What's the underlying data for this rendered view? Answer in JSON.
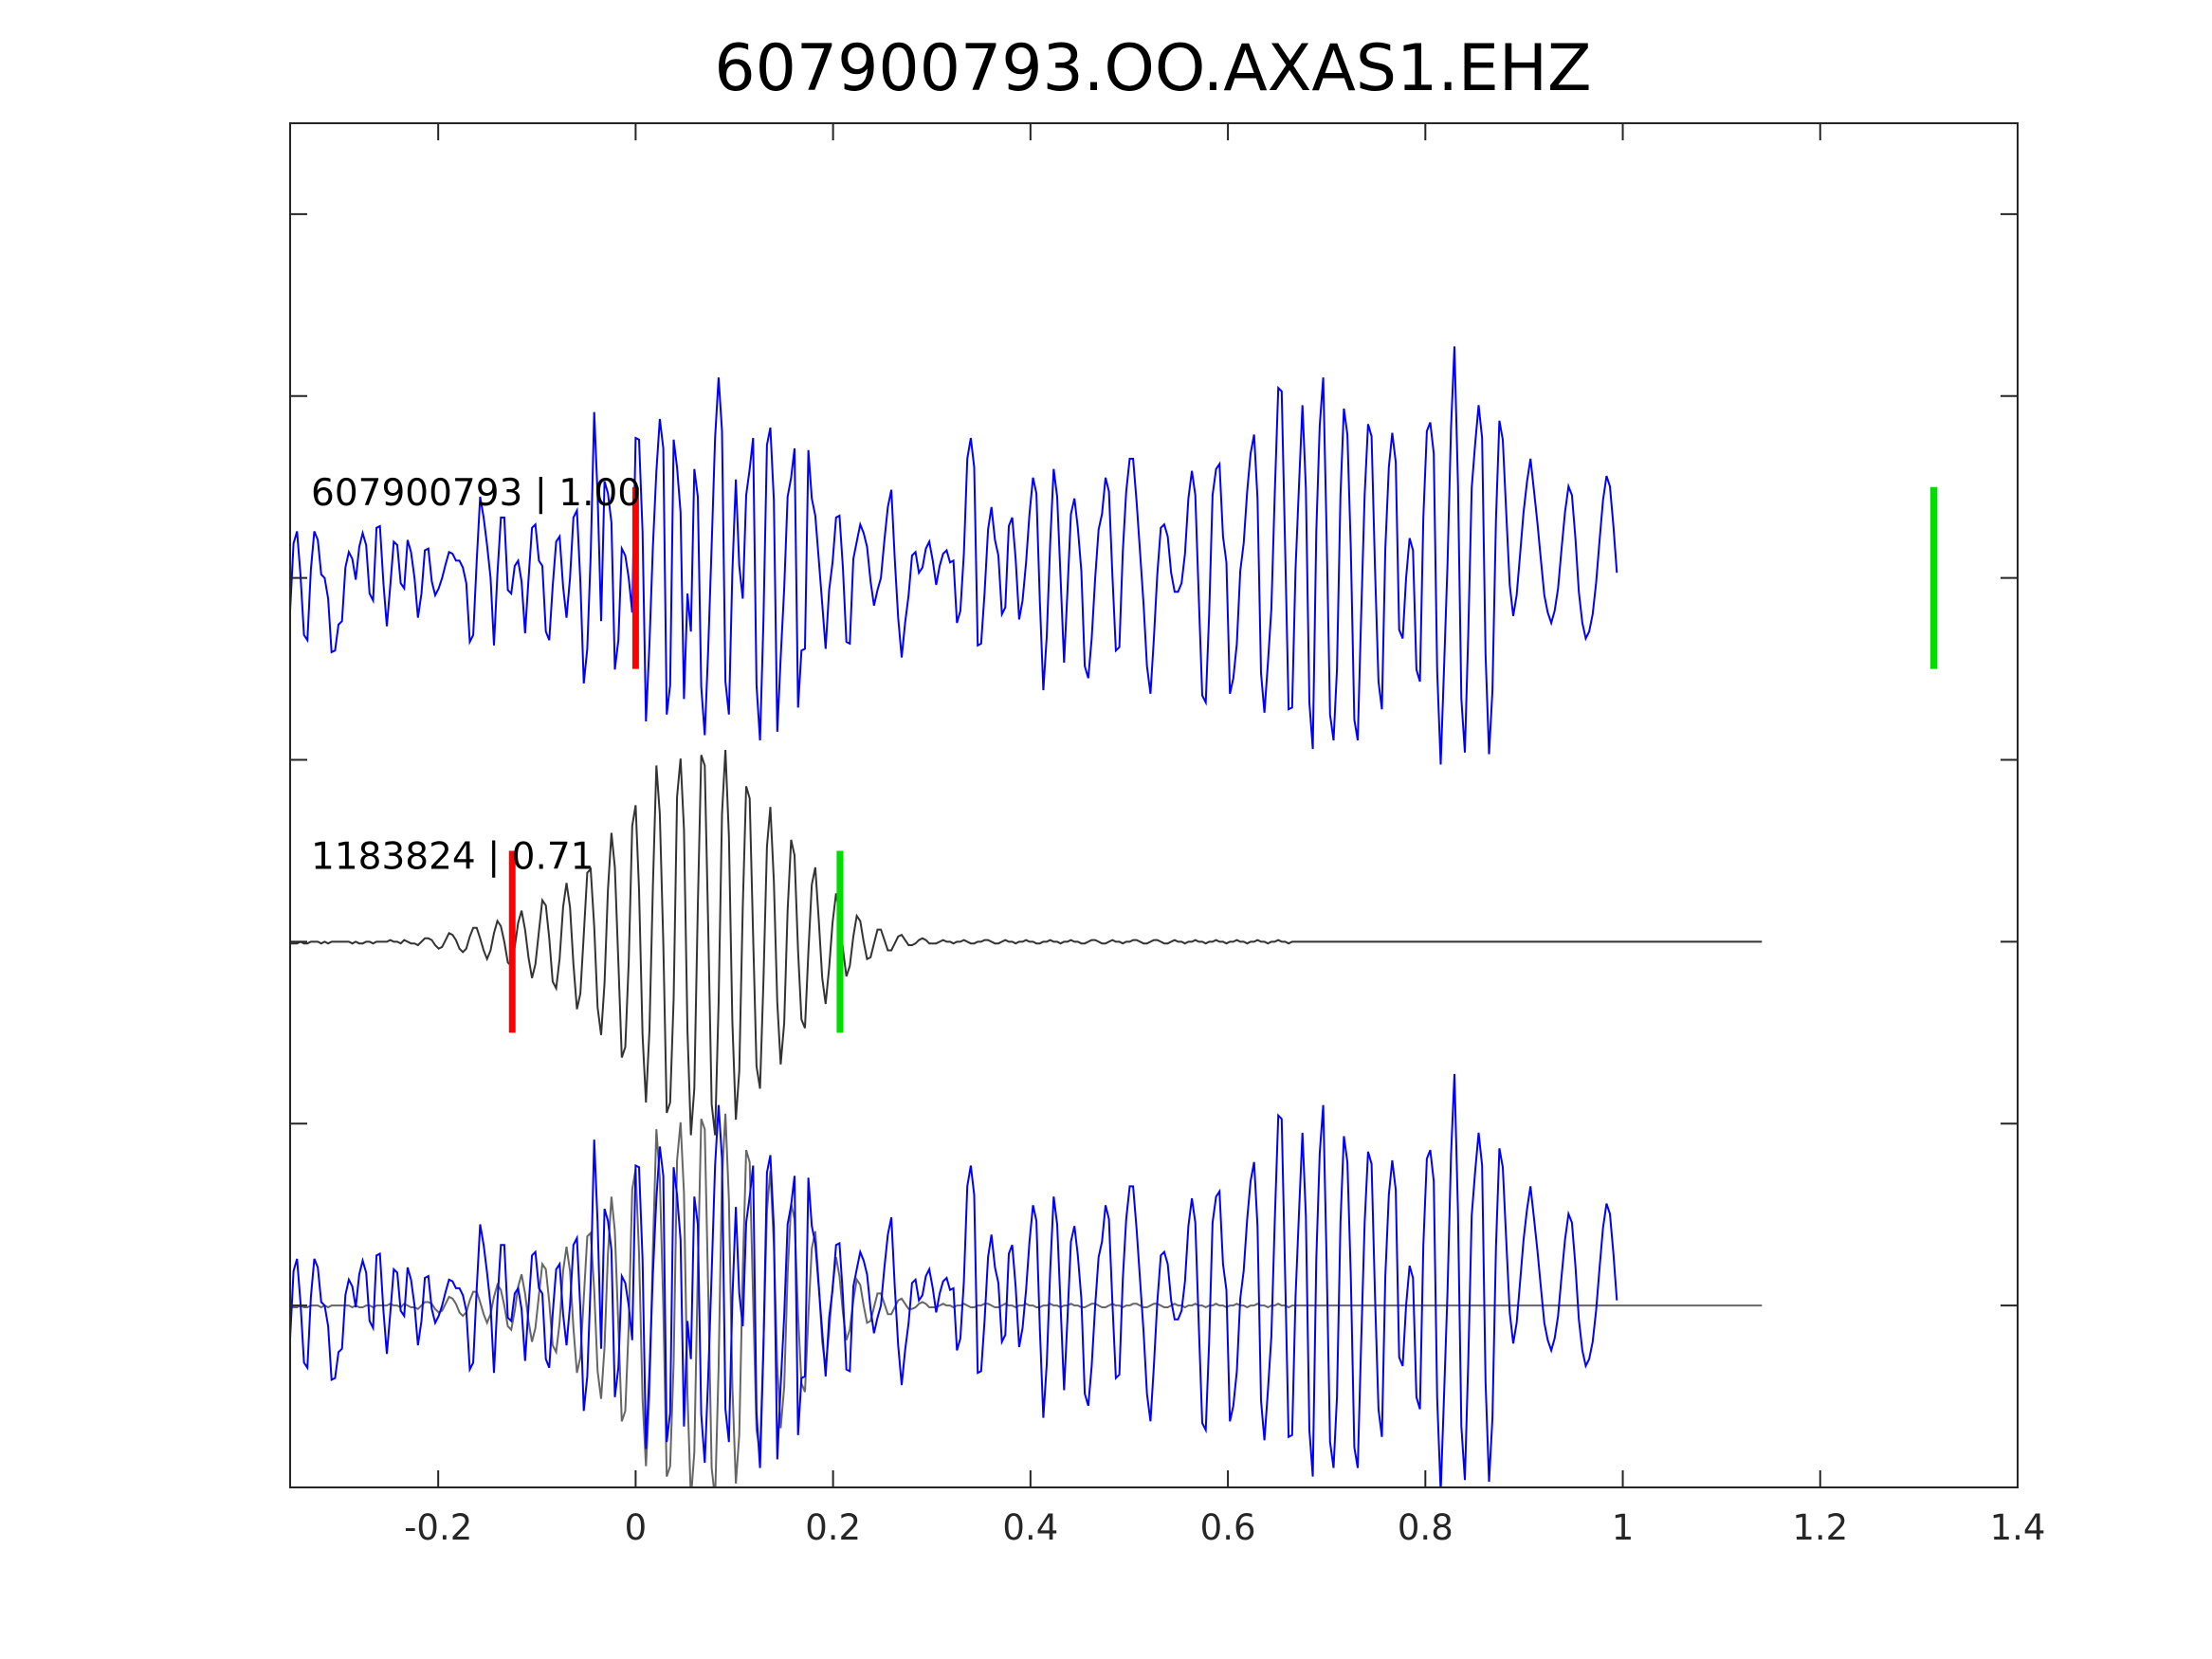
{
  "chart_data": {
    "type": "line",
    "title": "607900793.OO.AXAS1.EHZ",
    "xlabel": "",
    "ylabel": "",
    "xlim": [
      -0.35,
      1.4
    ],
    "xticks": [
      -0.2,
      0,
      0.2,
      0.4,
      0.6,
      0.8,
      1,
      1.2,
      1.4
    ],
    "xtick_labels": [
      "-0.2",
      "0",
      "0.2",
      "0.4",
      "0.6",
      "0.8",
      "1",
      "1.2",
      "1.4"
    ],
    "ytick_count": 7,
    "panels": [
      {
        "label": "607900793 | 1.00",
        "offset": 4,
        "color": "#0000ff",
        "markers": [
          {
            "kind": "red",
            "x": 0.0
          },
          {
            "kind": "green",
            "x": 1.315
          }
        ]
      },
      {
        "label": "1183824 | 0.71",
        "offset": 2,
        "color": "#333333",
        "markers": [
          {
            "kind": "red",
            "x": -0.125
          },
          {
            "kind": "green",
            "x": 0.207
          }
        ]
      },
      {
        "label": "",
        "offset": 0,
        "color": "#0000ff",
        "overlay_color": "#666666",
        "markers": []
      }
    ],
    "series": [
      {
        "x_start": -0.35,
        "x_step": 0.0035,
        "values": [
          -0.19,
          0.2,
          0.27,
          0.02,
          -0.33,
          -0.36,
          0.05,
          0.27,
          0.22,
          0.02,
          0.0,
          -0.12,
          -0.43,
          -0.42,
          -0.27,
          -0.25,
          0.06,
          0.15,
          0.11,
          -0.01,
          0.18,
          0.26,
          0.19,
          -0.09,
          -0.13,
          0.29,
          0.3,
          -0.03,
          -0.28,
          -0.04,
          0.21,
          0.19,
          -0.03,
          -0.06,
          0.22,
          0.15,
          0.0,
          -0.23,
          -0.09,
          0.16,
          0.17,
          -0.02,
          -0.1,
          -0.06,
          0.0,
          0.08,
          0.15,
          0.14,
          0.1,
          0.1,
          0.06,
          -0.03,
          -0.37,
          -0.33,
          0.1,
          0.47,
          0.35,
          0.19,
          0.0,
          -0.39,
          0.02,
          0.35,
          0.35,
          -0.07,
          -0.09,
          0.07,
          0.1,
          -0.02,
          -0.32,
          -0.01,
          0.29,
          0.31,
          0.1,
          0.07,
          -0.31,
          -0.36,
          -0.05,
          0.21,
          0.24,
          -0.05,
          -0.23,
          0.0,
          0.35,
          0.39,
          -0.02,
          -0.61,
          -0.41,
          0.13,
          0.96,
          0.48,
          -0.25,
          0.56,
          0.49,
          0.32,
          -0.53,
          -0.36,
          0.17,
          0.13,
          0.0,
          -0.2,
          0.81,
          0.8,
          0.27,
          -0.83,
          -0.38,
          0.18,
          0.62,
          0.92,
          0.75,
          -0.79,
          -0.62,
          0.8,
          0.64,
          0.38,
          -0.7,
          -0.09,
          -0.31,
          0.63,
          0.47,
          -0.63,
          -0.91,
          -0.42,
          0.19,
          0.81,
          1.16,
          0.85,
          -0.6,
          -0.79,
          0.03,
          0.57,
          0.07,
          -0.12,
          0.48,
          0.63,
          0.81,
          -0.62,
          -0.94,
          -0.25,
          0.77,
          0.87,
          0.45,
          -0.89,
          -0.46,
          -0.06,
          0.47,
          0.58,
          0.75,
          -0.75,
          -0.42,
          -0.41,
          0.74,
          0.46,
          0.36,
          0.11,
          -0.15,
          -0.41,
          -0.07,
          0.09,
          0.35,
          0.36,
          0.06,
          -0.37,
          -0.38,
          0.11,
          0.21,
          0.31,
          0.26,
          0.18,
          -0.02,
          -0.16,
          -0.07,
          0.0,
          0.22,
          0.41,
          0.51,
          0.11,
          -0.23,
          -0.46,
          -0.26,
          -0.1,
          0.13,
          0.15,
          0.03,
          0.06,
          0.17,
          0.21,
          0.1,
          -0.04,
          0.07,
          0.14,
          0.16,
          0.09,
          0.1,
          -0.26,
          -0.19,
          0.14,
          0.69,
          0.81,
          0.64,
          -0.39,
          -0.38,
          -0.09,
          0.28,
          0.41,
          0.22,
          0.13,
          -0.21,
          -0.17,
          0.3,
          0.35,
          0.11,
          -0.24,
          -0.13,
          0.09,
          0.37,
          0.58,
          0.49,
          -0.13,
          -0.65,
          -0.34,
          0.21,
          0.63,
          0.47,
          0.0,
          -0.49,
          -0.07,
          0.37,
          0.46,
          0.29,
          0.04,
          -0.51,
          -0.58,
          -0.35,
          0.0,
          0.28,
          0.37,
          0.58,
          0.5,
          0.01,
          -0.42,
          -0.4,
          0.15,
          0.5,
          0.69,
          0.69,
          0.44,
          0.15,
          -0.15,
          -0.51,
          -0.67,
          -0.35,
          0.02,
          0.29,
          0.31,
          0.24,
          0.03,
          -0.08,
          -0.08,
          -0.03,
          0.14,
          0.46,
          0.62,
          0.48,
          -0.12,
          -0.68,
          -0.72,
          -0.21,
          0.48,
          0.63,
          0.66,
          0.24,
          0.09,
          -0.67,
          -0.58,
          -0.38,
          0.04,
          0.2,
          0.5,
          0.72,
          0.83,
          0.46,
          -0.55,
          -0.78,
          -0.49,
          -0.18,
          0.49,
          1.1,
          1.08,
          0.16,
          -0.76,
          -0.75,
          0.05,
          0.53,
          1.0,
          0.52,
          -0.72,
          -0.99,
          0.27,
          0.88,
          1.16,
          0.25,
          -0.79,
          -0.94,
          -0.53,
          0.48,
          0.98,
          0.83,
          0.17,
          -0.82,
          -0.94,
          -0.22,
          0.48,
          0.89,
          0.82,
          0.06,
          -0.6,
          -0.76,
          0.17,
          0.64,
          0.84,
          0.67,
          -0.3,
          -0.35,
          0.0,
          0.23,
          0.16,
          -0.53,
          -0.6,
          0.35,
          0.85,
          0.9,
          0.72,
          -0.54,
          -1.08,
          -0.51,
          0.08,
          0.87,
          1.34,
          0.55,
          -0.7,
          -1.01,
          -0.32,
          0.52,
          0.78,
          1.0,
          0.81,
          -0.44,
          -1.02,
          -0.65,
          0.34,
          0.91,
          0.8,
          0.37,
          -0.04,
          -0.22,
          -0.1,
          0.14,
          0.38,
          0.56,
          0.69,
          0.51,
          0.32,
          0.11,
          -0.1,
          -0.2,
          -0.26,
          -0.19,
          -0.06,
          0.17,
          0.38,
          0.53,
          0.48,
          0.23,
          -0.08,
          -0.26,
          -0.35,
          -0.31,
          -0.21,
          -0.03,
          0.22,
          0.45,
          0.59,
          0.53,
          0.3,
          0.03
        ]
      },
      {
        "x_start": -0.35,
        "x_step": 0.0035,
        "values": [
          -0.01,
          -0.01,
          -0.01,
          0.0,
          -0.01,
          -0.01,
          0.0,
          0.0,
          0.0,
          -0.01,
          0.0,
          -0.01,
          0.0,
          0.0,
          0.0,
          0.0,
          0.0,
          0.0,
          -0.01,
          0.0,
          -0.01,
          -0.01,
          0.0,
          0.0,
          -0.01,
          0.0,
          0.0,
          0.0,
          0.0,
          0.01,
          0.0,
          0.0,
          -0.01,
          0.01,
          0.0,
          -0.01,
          -0.01,
          -0.02,
          0.0,
          0.02,
          0.02,
          0.01,
          -0.02,
          -0.04,
          -0.03,
          0.01,
          0.05,
          0.04,
          0.01,
          -0.04,
          -0.06,
          -0.04,
          0.03,
          0.08,
          0.08,
          0.02,
          -0.05,
          -0.1,
          -0.05,
          0.05,
          0.12,
          0.09,
          0.0,
          -0.12,
          -0.14,
          -0.03,
          0.11,
          0.18,
          0.07,
          -0.09,
          -0.21,
          -0.13,
          0.06,
          0.24,
          0.21,
          0.02,
          -0.23,
          -0.27,
          -0.1,
          0.2,
          0.34,
          0.2,
          -0.13,
          -0.39,
          -0.3,
          0.04,
          0.4,
          0.42,
          0.09,
          -0.38,
          -0.54,
          -0.24,
          0.3,
          0.63,
          0.43,
          -0.12,
          -0.67,
          -0.61,
          -0.12,
          0.67,
          0.79,
          0.3,
          -0.54,
          -0.93,
          -0.51,
          0.32,
          1.02,
          0.74,
          -0.01,
          -0.99,
          -0.93,
          -0.33,
          0.84,
          1.06,
          0.65,
          -0.52,
          -1.12,
          -0.85,
          0.21,
          1.08,
          1.02,
          0.1,
          -0.94,
          -1.12,
          -0.36,
          0.74,
          1.11,
          0.61,
          -0.46,
          -1.03,
          -0.75,
          0.2,
          0.9,
          0.83,
          0.04,
          -0.72,
          -0.85,
          -0.23,
          0.55,
          0.78,
          0.35,
          -0.35,
          -0.71,
          -0.47,
          0.18,
          0.59,
          0.5,
          -0.05,
          -0.45,
          -0.5,
          -0.06,
          0.33,
          0.43,
          0.13,
          -0.21,
          -0.36,
          -0.15,
          0.11,
          0.28,
          0.17,
          -0.04,
          -0.2,
          -0.14,
          0.03,
          0.15,
          0.12,
          0.0,
          -0.1,
          -0.09,
          -0.01,
          0.07,
          0.07,
          0.01,
          -0.05,
          -0.05,
          -0.01,
          0.03,
          0.04,
          0.01,
          -0.02,
          -0.02,
          -0.01,
          0.01,
          0.02,
          0.01,
          -0.01,
          -0.01,
          -0.01,
          0.0,
          0.01,
          0.0,
          0.0,
          -0.01,
          0.0,
          0.0,
          0.01,
          0.0,
          -0.01,
          -0.01,
          0.0,
          0.0,
          0.01,
          0.01,
          0.0,
          -0.01,
          -0.01,
          0.0,
          0.01,
          0.0,
          0.0,
          -0.01,
          0.0,
          0.0,
          0.01,
          0.0,
          0.0,
          -0.01,
          -0.01,
          0.0,
          0.0,
          0.01,
          0.0,
          0.0,
          -0.01,
          0.0,
          0.0,
          0.01,
          0.0,
          0.0,
          -0.01,
          -0.01,
          0.0,
          0.01,
          0.01,
          0.0,
          -0.01,
          -0.01,
          0.0,
          0.01,
          0.0,
          0.0,
          -0.01,
          0.0,
          0.0,
          0.01,
          0.01,
          0.0,
          -0.01,
          -0.01,
          0.0,
          0.01,
          0.01,
          0.0,
          -0.01,
          -0.01,
          0.0,
          0.01,
          0.0,
          0.0,
          -0.01,
          0.0,
          0.0,
          0.01,
          0.0,
          0.0,
          -0.01,
          0.0,
          0.0,
          0.01,
          0.0,
          0.0,
          -0.01,
          0.0,
          0.0,
          0.01,
          0.0,
          0.0,
          -0.01,
          0.0,
          0.0,
          0.01,
          0.0,
          0.0,
          -0.01,
          0.0,
          0.0,
          0.01,
          0.0,
          0.0,
          -0.01,
          0.0,
          0.0,
          0.0,
          0.0,
          0.0,
          0.0,
          0.0,
          0.0,
          0.0,
          0.0,
          0.0,
          0.0,
          0.0,
          0.0,
          0.0,
          0.0,
          0.0,
          0.0,
          0.0,
          0.0,
          0.0,
          0.0,
          0.0,
          0.0,
          0.0,
          0.0,
          0.0,
          0.0,
          0.0,
          0.0,
          0.0,
          0.0,
          0.0,
          0.0,
          0.0,
          0.0,
          0.0,
          0.0,
          0.0,
          0.0,
          0.0,
          0.0,
          0.0,
          0.0,
          0.0,
          0.0,
          0.0,
          0.0,
          0.0,
          0.0,
          0.0,
          0.0,
          0.0,
          0.0,
          0.0,
          0.0,
          0.0,
          0.0,
          0.0,
          0.0,
          0.0,
          0.0,
          0.0,
          0.0,
          0.0,
          0.0,
          0.0,
          0.0,
          0.0,
          0.0,
          0.0,
          0.0,
          0.0,
          0.0,
          0.0,
          0.0,
          0.0,
          0.0,
          0.0,
          0.0,
          0.0,
          0.0,
          0.0,
          0.0,
          0.0,
          0.0,
          0.0,
          0.0,
          0.0,
          0.0,
          0.0,
          0.0,
          0.0,
          0.0,
          0.0,
          0.0,
          0.0,
          0.0,
          0.0,
          0.0,
          0.0,
          0.0,
          0.0,
          0.0,
          0.0,
          0.0,
          0.0,
          0.0,
          0.0,
          0.0,
          0.0,
          0.0,
          0.0,
          0.0,
          0.0,
          0.0,
          0.0,
          0.0,
          0.0,
          0.0,
          0.0,
          0.0,
          0.0,
          0.0,
          0.0,
          0.0,
          0.0,
          0.0,
          0.0,
          0.0,
          0.0,
          0.0,
          0.0,
          0.0,
          0.0,
          0.0,
          0.0
        ]
      }
    ]
  }
}
